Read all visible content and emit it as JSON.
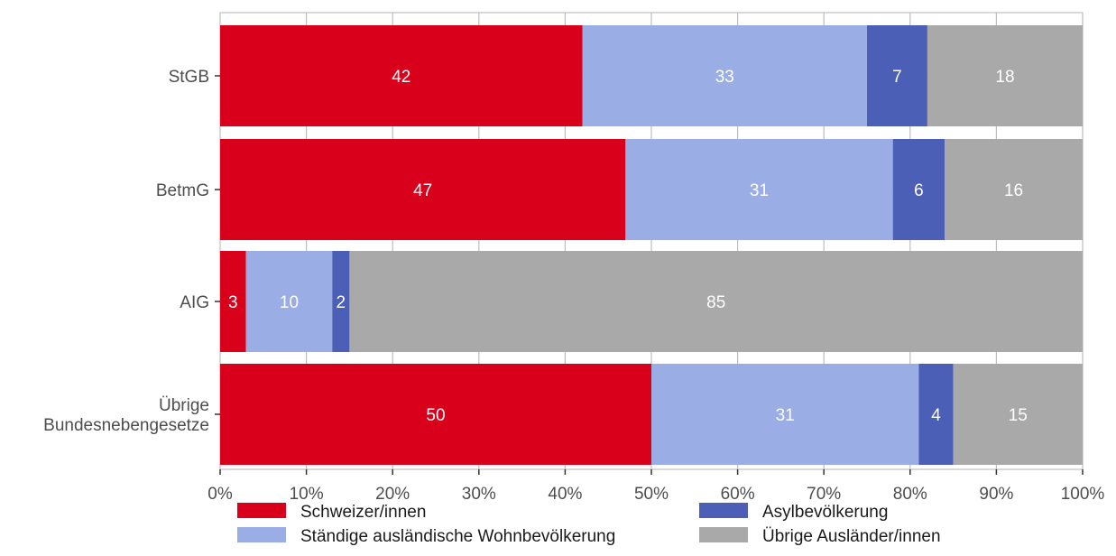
{
  "chart_data": {
    "type": "bar",
    "orientation": "horizontal",
    "stacked": true,
    "categories": [
      "StGB",
      "BetmG",
      "AIG",
      "Übrige Bundesnebengesetze"
    ],
    "category_lines": [
      [
        "StGB"
      ],
      [
        "BetmG"
      ],
      [
        "AIG"
      ],
      [
        "Übrige",
        "Bundesnebengesetze"
      ]
    ],
    "series": [
      {
        "name": "Schweizer/innen",
        "color": "#d9001b",
        "values": [
          42,
          47,
          3,
          50
        ]
      },
      {
        "name": "Ständige ausländische Wohnbevölkerung",
        "color": "#9aade4",
        "values": [
          33,
          31,
          10,
          31
        ]
      },
      {
        "name": "Asylbevölkerung",
        "color": "#4a5fb5",
        "values": [
          7,
          6,
          2,
          4
        ]
      },
      {
        "name": "Übrige Ausländer/innen",
        "color": "#a9a9a9",
        "values": [
          18,
          16,
          85,
          15
        ]
      }
    ],
    "xlim": [
      0,
      100
    ],
    "xticks": [
      0,
      10,
      20,
      30,
      40,
      50,
      60,
      70,
      80,
      90,
      100
    ],
    "xtick_labels": [
      "0%",
      "10%",
      "20%",
      "30%",
      "40%",
      "50%",
      "60%",
      "70%",
      "80%",
      "90%",
      "100%"
    ],
    "grid": true,
    "legend_position": "bottom"
  }
}
